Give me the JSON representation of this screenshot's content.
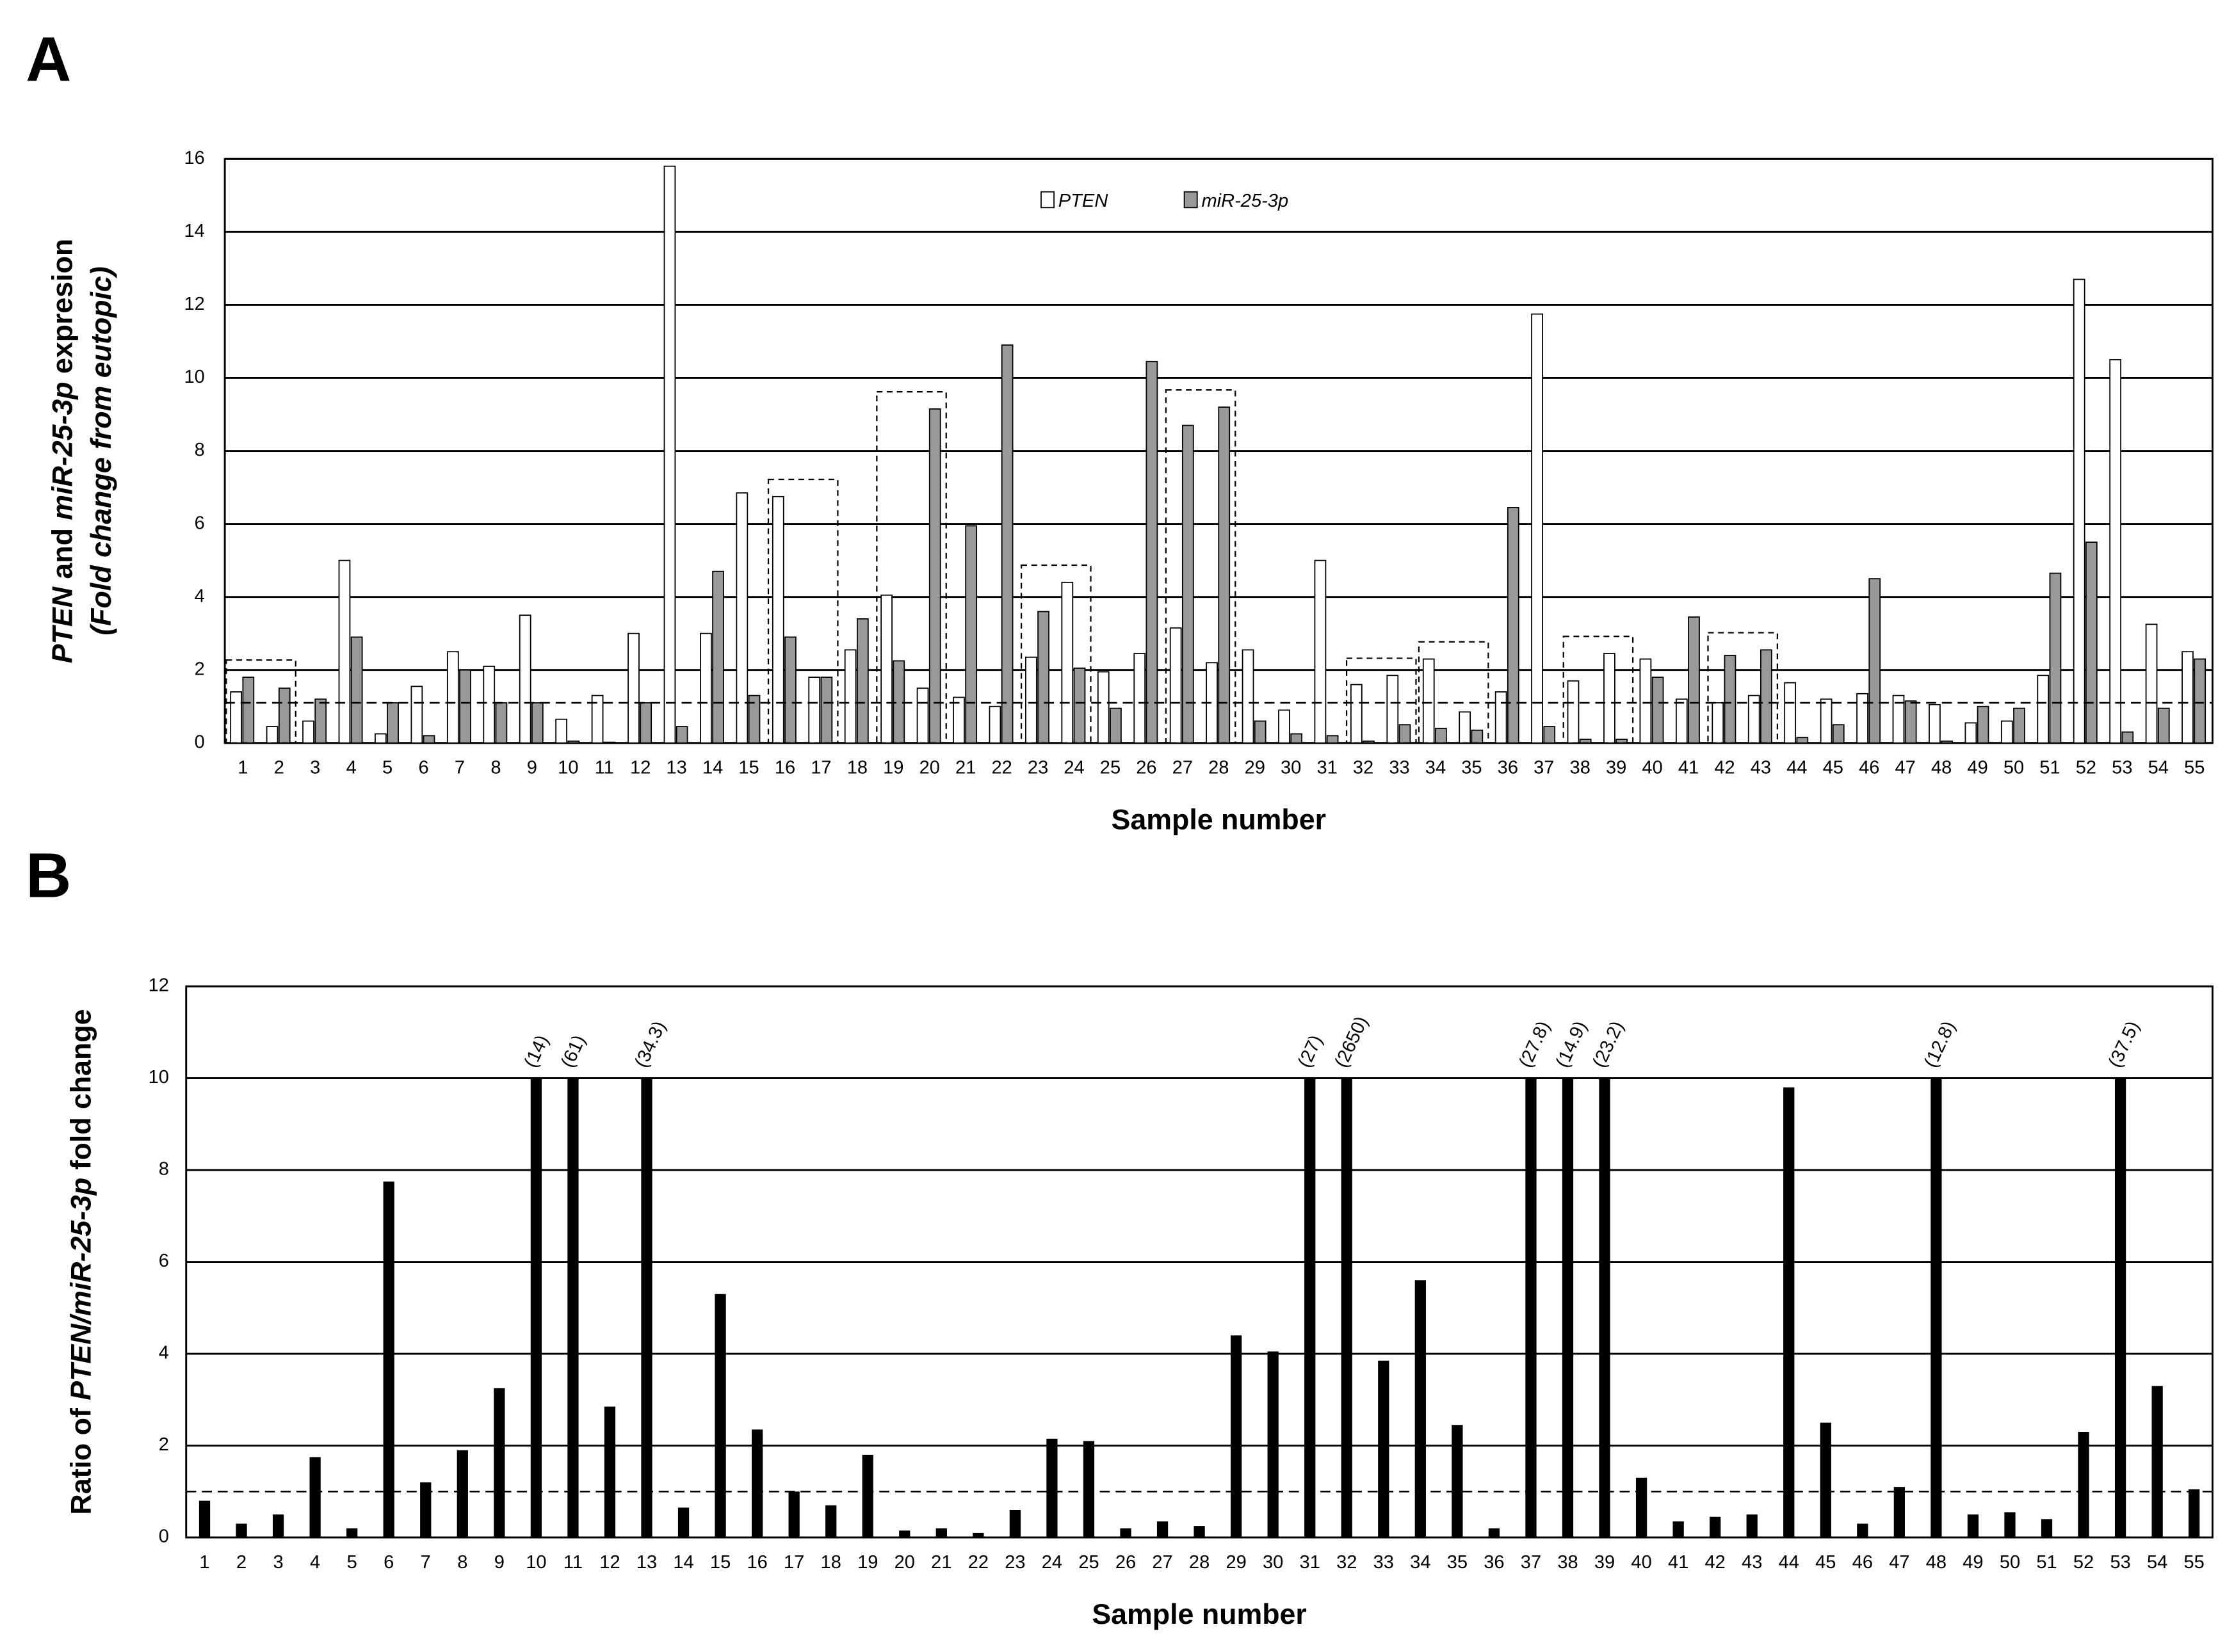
{
  "chart_data": [
    {
      "type": "bar",
      "panel_label": "A",
      "y_label_parts": [
        "PTEN",
        " and ",
        "miR-25-3p",
        " expresion"
      ],
      "y_sublabel": "(Fold change from eutopic)",
      "x_label": "Sample number",
      "categories": [
        "1",
        "2",
        "3",
        "4",
        "5",
        "6",
        "7",
        "8",
        "9",
        "10",
        "11",
        "12",
        "13",
        "14",
        "15",
        "16",
        "17",
        "18",
        "19",
        "20",
        "21",
        "22",
        "23",
        "24",
        "25",
        "26",
        "27",
        "28",
        "29",
        "30",
        "31",
        "32",
        "33",
        "34",
        "35",
        "36",
        "37",
        "38",
        "39",
        "40",
        "41",
        "42",
        "43",
        "44",
        "45",
        "46",
        "47",
        "48",
        "49",
        "50",
        "51",
        "52",
        "53",
        "54",
        "55"
      ],
      "series": [
        {
          "name": "PTEN",
          "color": "#ffffff",
          "values": [
            1.4,
            0.45,
            0.6,
            5.0,
            0.25,
            1.55,
            2.5,
            2.1,
            3.5,
            0.65,
            1.3,
            3.0,
            15.8,
            3.0,
            6.85,
            6.75,
            1.8,
            2.55,
            4.05,
            1.5,
            1.25,
            1.0,
            2.35,
            4.4,
            1.95,
            2.45,
            3.15,
            2.2,
            2.55,
            0.9,
            5.0,
            1.6,
            1.85,
            2.3,
            0.85,
            1.4,
            11.75,
            1.7,
            2.45,
            2.3,
            1.2,
            1.1,
            1.3,
            1.65,
            1.2,
            1.35,
            1.3,
            1.05,
            0.55,
            0.6,
            1.85,
            12.7,
            10.5,
            3.25,
            2.5
          ]
        },
        {
          "name": "miR-25-3p",
          "color": "#999999",
          "values": [
            1.8,
            1.5,
            1.2,
            2.9,
            1.1,
            0.2,
            2.0,
            1.1,
            1.1,
            0.05,
            0.02,
            1.1,
            0.45,
            4.7,
            1.3,
            2.9,
            1.8,
            3.4,
            2.25,
            9.15,
            5.95,
            10.9,
            3.6,
            2.05,
            0.95,
            10.45,
            8.7,
            9.2,
            0.6,
            0.25,
            0.2,
            0.05,
            0.5,
            0.4,
            0.35,
            6.45,
            0.45,
            0.1,
            0.1,
            1.8,
            3.45,
            2.4,
            2.55,
            0.15,
            0.5,
            4.5,
            1.15,
            0.05,
            1.0,
            0.95,
            4.65,
            5.5,
            0.3,
            0.95,
            2.3
          ]
        }
      ],
      "ylim": [
        0,
        16
      ],
      "yticks": [
        0,
        2,
        4,
        6,
        8,
        10,
        12,
        14,
        16
      ],
      "grid": true,
      "reference_line": 1.1
    },
    {
      "type": "bar",
      "panel_label": "B",
      "y_label_parts": [
        "Ratio of ",
        "PTEN/miR-25-3p",
        " fold change"
      ],
      "x_label": "Sample number",
      "categories": [
        "1",
        "2",
        "3",
        "4",
        "5",
        "6",
        "7",
        "8",
        "9",
        "10",
        "11",
        "12",
        "13",
        "14",
        "15",
        "16",
        "17",
        "18",
        "19",
        "20",
        "21",
        "22",
        "23",
        "24",
        "25",
        "26",
        "27",
        "28",
        "29",
        "30",
        "31",
        "32",
        "33",
        "34",
        "35",
        "36",
        "37",
        "38",
        "39",
        "40",
        "41",
        "42",
        "43",
        "44",
        "45",
        "46",
        "47",
        "48",
        "49",
        "50",
        "51",
        "52",
        "53",
        "54",
        "55"
      ],
      "values": [
        0.8,
        0.3,
        0.5,
        1.75,
        0.2,
        7.75,
        1.2,
        1.9,
        3.25,
        10,
        10,
        2.85,
        10,
        0.65,
        5.3,
        2.35,
        1.0,
        0.7,
        1.8,
        0.15,
        0.2,
        0.1,
        0.6,
        2.15,
        2.1,
        0.2,
        0.35,
        0.25,
        4.4,
        4.05,
        10,
        10,
        3.85,
        5.6,
        2.45,
        0.2,
        10,
        10,
        10,
        1.3,
        0.35,
        0.45,
        0.5,
        9.8,
        2.5,
        0.3,
        1.1,
        10,
        0.5,
        0.55,
        0.4,
        2.3,
        10,
        3.3,
        1.05
      ],
      "color": "#000000",
      "annotations": [
        {
          "x": "10",
          "text": "(14)"
        },
        {
          "x": "11",
          "text": "(61)"
        },
        {
          "x": "13",
          "text": "(34.3)"
        },
        {
          "x": "31",
          "text": "(27)"
        },
        {
          "x": "32",
          "text": "(2650)"
        },
        {
          "x": "37",
          "text": "(27.8)"
        },
        {
          "x": "38",
          "text": "(14.9)"
        },
        {
          "x": "39",
          "text": "(23.2)"
        },
        {
          "x": "48",
          "text": "(12.8)"
        },
        {
          "x": "53",
          "text": "(37.5)"
        }
      ],
      "ylim": [
        0,
        12
      ],
      "yticks": [
        0,
        2,
        4,
        6,
        8,
        10,
        12
      ],
      "grid": true,
      "reference_line": 1
    }
  ]
}
